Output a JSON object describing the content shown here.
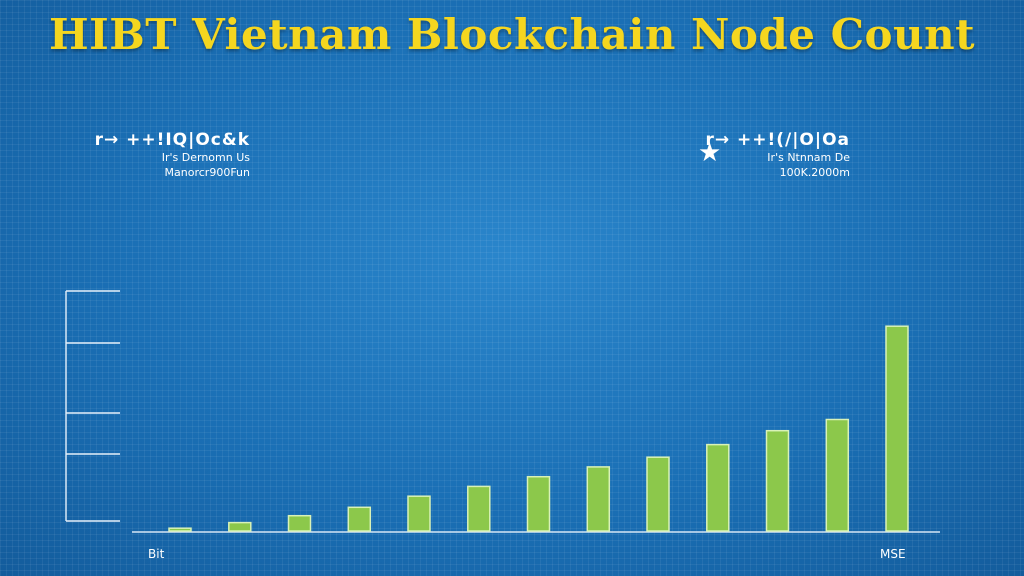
{
  "title": "HIBT Vietnam Blockchain Node Count",
  "note_left": {
    "head": "r→ ++!ΙQ|Οc&k",
    "line1": "Ir's Dernomn Us",
    "line2": "Manorcr900Fun"
  },
  "note_right": {
    "head": "r→ ++!(/|Ο|Οa",
    "line1": "Ir's Ntnnam De",
    "line2": "100K.2000m"
  },
  "icons": {
    "star": "star-icon"
  },
  "colors": {
    "background": "#1a6fb5",
    "title": "#f5d61f",
    "bar": "#8cc84b"
  },
  "chart_data": {
    "type": "bar",
    "title": "HIBT Vietnam Blockchain Node Count",
    "categories": [
      "Bit",
      "",
      "",
      "",
      "",
      "",
      "",
      "",
      "",
      "",
      "",
      "",
      "MSE"
    ],
    "values": [
      2,
      6,
      11,
      17,
      25,
      32,
      39,
      46,
      53,
      62,
      72,
      80,
      147
    ],
    "ylim": [
      0,
      150
    ],
    "grid": false,
    "legend": "none"
  }
}
